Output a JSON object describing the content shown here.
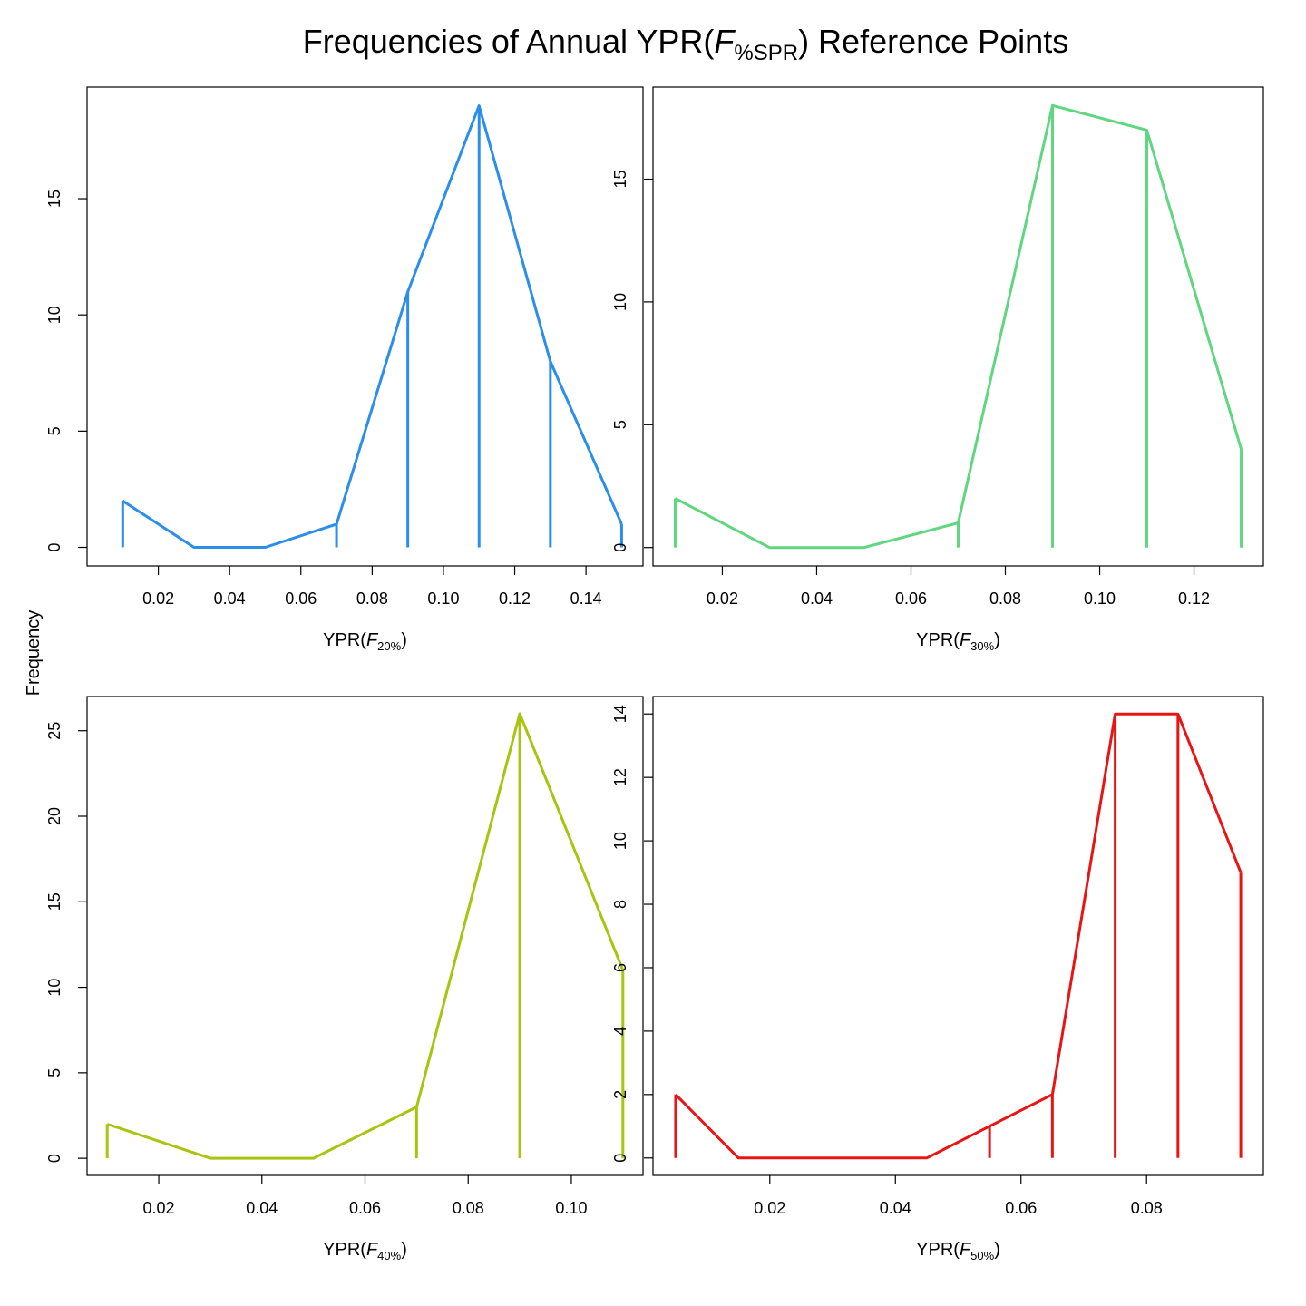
{
  "figure": {
    "title_prefix": "Frequencies of Annual YPR(",
    "title_italic": "F",
    "title_sub": "%SPR",
    "title_suffix": ") Reference Points",
    "shared_ylabel": "Frequency"
  },
  "chart_data": [
    {
      "type": "line",
      "style": "frequency polygon with drop lines",
      "color": "#2b8ee8",
      "xlabel": {
        "prefix": "YPR(",
        "italic": "F",
        "sub": "20%",
        "suffix": ")"
      },
      "x": [
        0.01,
        0.03,
        0.05,
        0.07,
        0.09,
        0.11,
        0.13,
        0.15
      ],
      "y": [
        2,
        0,
        0,
        1,
        11,
        19,
        8,
        1
      ],
      "xlim": [
        0.0,
        0.156
      ],
      "ylim": [
        -0.8,
        19.8
      ],
      "xticks": [
        0.02,
        0.04,
        0.06,
        0.08,
        0.1,
        0.12,
        0.14
      ],
      "xtick_labels": [
        "0.02",
        "0.04",
        "0.06",
        "0.08",
        "0.10",
        "0.12",
        "0.14"
      ],
      "yticks": [
        0,
        5,
        10,
        15
      ],
      "ytick_labels": [
        "0",
        "5",
        "10",
        "15"
      ],
      "grid": false
    },
    {
      "type": "line",
      "style": "frequency polygon with drop lines",
      "color": "#5fd67f",
      "xlabel": {
        "prefix": "YPR(",
        "italic": "F",
        "sub": "30%",
        "suffix": ")"
      },
      "x": [
        0.01,
        0.03,
        0.05,
        0.07,
        0.09,
        0.11,
        0.13
      ],
      "y": [
        2,
        0,
        0,
        1,
        18,
        17,
        4
      ],
      "xlim": [
        0.0053,
        0.1347
      ],
      "ylim": [
        -0.75,
        18.75
      ],
      "xticks": [
        0.02,
        0.04,
        0.06,
        0.08,
        0.1,
        0.12
      ],
      "xtick_labels": [
        "0.02",
        "0.04",
        "0.06",
        "0.08",
        "0.10",
        "0.12"
      ],
      "yticks": [
        0,
        5,
        10,
        15
      ],
      "ytick_labels": [
        "0",
        "5",
        "10",
        "15"
      ],
      "grid": false
    },
    {
      "type": "line",
      "style": "frequency polygon with drop lines",
      "color": "#a8c40f",
      "xlabel": {
        "prefix": "YPR(",
        "italic": "F",
        "sub": "40%",
        "suffix": ")"
      },
      "x": [
        0.01,
        0.03,
        0.05,
        0.07,
        0.09,
        0.11
      ],
      "y": [
        2,
        0,
        0,
        3,
        26,
        11
      ],
      "xlim": [
        0.0061,
        0.1139
      ],
      "ylim": [
        -1.0,
        27.0
      ],
      "xticks": [
        0.02,
        0.04,
        0.06,
        0.08,
        0.1
      ],
      "xtick_labels": [
        "0.02",
        "0.04",
        "0.06",
        "0.08",
        "0.10"
      ],
      "yticks": [
        0,
        5,
        10,
        15,
        20,
        25
      ],
      "ytick_labels": [
        "0",
        "5",
        "10",
        "15",
        "20",
        "25"
      ],
      "grid": false
    },
    {
      "type": "line",
      "style": "frequency polygon with drop lines",
      "color": "#e81515",
      "xlabel": {
        "prefix": "YPR(",
        "italic": "F",
        "sub": "50%",
        "suffix": ")"
      },
      "x": [
        0.005,
        0.015,
        0.025,
        0.035,
        0.045,
        0.055,
        0.065,
        0.075,
        0.085,
        0.095
      ],
      "y": [
        2,
        0,
        0,
        0,
        0,
        1,
        2,
        14,
        14,
        9
      ],
      "xlim": [
        0.0014,
        0.0986
      ],
      "ylim": [
        -0.55,
        14.55
      ],
      "xticks": [
        0.02,
        0.04,
        0.06,
        0.08
      ],
      "xtick_labels": [
        "0.02",
        "0.04",
        "0.06",
        "0.08"
      ],
      "yticks": [
        0,
        2,
        4,
        6,
        8,
        10,
        12,
        14
      ],
      "ytick_labels": [
        "0",
        "2",
        "4",
        "6",
        "8",
        "10",
        "12",
        "14"
      ],
      "grid": false
    }
  ]
}
